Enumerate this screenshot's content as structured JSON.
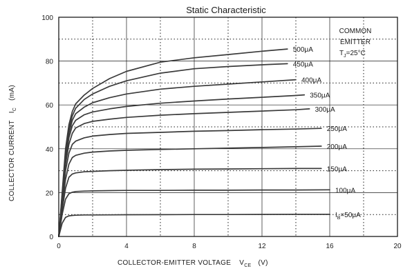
{
  "chart_data": {
    "type": "line",
    "title": "Static Characteristic",
    "xlabel": "COLLECTOR-EMITTER VOLTAGE",
    "xlabel_symbol": "V",
    "xlabel_symbol_sub": "CE",
    "xlabel_unit": "(V)",
    "ylabel": "COLLECTOR CURRENT",
    "ylabel_symbol": "I",
    "ylabel_symbol_sub": "C",
    "ylabel_unit": "(mA)",
    "xlim": [
      0,
      20
    ],
    "ylim": [
      0,
      100
    ],
    "x_ticks": [
      "0",
      "4",
      "8",
      "12",
      "16",
      "20"
    ],
    "y_ticks": [
      "0",
      "20",
      "40",
      "60",
      "80",
      "100"
    ],
    "grid": true,
    "annotation": {
      "line1": "COMMON",
      "line2": "EMITTER",
      "line3_main": "T",
      "line3_sub": "J",
      "line3_rest": "=25°C"
    },
    "series": [
      {
        "name": "I_B=50μA",
        "label_main": "I",
        "label_sub": "B",
        "label_rest": "=50μA",
        "x": [
          0,
          0.2,
          0.4,
          0.6,
          0.8,
          1.0,
          1.5,
          2,
          3,
          4,
          6,
          8,
          10,
          12,
          14,
          16
        ],
        "y": [
          0,
          6,
          8.7,
          9.4,
          9.6,
          9.7,
          9.8,
          9.8,
          9.85,
          9.9,
          9.95,
          10,
          10,
          10.05,
          10.1,
          10.1
        ]
      },
      {
        "name": "100μA",
        "label_main": "100μA",
        "x": [
          0,
          0.2,
          0.4,
          0.6,
          0.8,
          1.0,
          1.5,
          2,
          3,
          4,
          6,
          8,
          10,
          12,
          14,
          16
        ],
        "y": [
          0,
          10,
          17,
          19.5,
          20.2,
          20.5,
          20.7,
          20.8,
          20.9,
          21,
          21,
          21.1,
          21.1,
          21.2,
          21.2,
          21.3
        ]
      },
      {
        "name": "150μA",
        "label_main": "150μA",
        "x": [
          0,
          0.2,
          0.4,
          0.6,
          0.8,
          1.0,
          1.5,
          2,
          3,
          4,
          6,
          8,
          10,
          12,
          14,
          15.5
        ],
        "y": [
          0,
          12,
          22,
          27,
          28.5,
          29,
          29.5,
          29.7,
          30,
          30.2,
          30.5,
          30.7,
          30.8,
          30.9,
          31,
          31
        ]
      },
      {
        "name": "200μA",
        "label_main": "200μA",
        "x": [
          0,
          0.2,
          0.4,
          0.6,
          0.8,
          1.0,
          1.5,
          2,
          3,
          4,
          6,
          8,
          10,
          12,
          14,
          15.5
        ],
        "y": [
          0,
          14,
          26,
          33,
          36,
          37,
          38,
          38.5,
          39,
          39.3,
          39.7,
          40,
          40.3,
          40.6,
          40.9,
          41.2
        ]
      },
      {
        "name": "250μA",
        "label_main": "250μA",
        "x": [
          0,
          0.2,
          0.4,
          0.6,
          0.8,
          1.0,
          1.5,
          2,
          3,
          4,
          6,
          8,
          10,
          12,
          14,
          15.5
        ],
        "y": [
          0,
          15,
          30,
          38,
          42,
          43.5,
          45,
          45.8,
          46.5,
          47,
          47.5,
          48,
          48.3,
          48.7,
          49,
          49.3
        ]
      },
      {
        "name": "300μA",
        "label_main": "300μA",
        "x": [
          0,
          0.2,
          0.4,
          0.6,
          0.8,
          1.0,
          1.5,
          2,
          3,
          4,
          6,
          8,
          10,
          12,
          14,
          14.8
        ],
        "y": [
          0,
          16,
          33,
          42,
          47,
          49.5,
          51.5,
          52.5,
          53.5,
          54.3,
          55.3,
          56,
          56.6,
          57.2,
          57.8,
          58.2
        ]
      },
      {
        "name": "350μA",
        "label_main": "350μA",
        "x": [
          0,
          0.2,
          0.4,
          0.6,
          0.8,
          1.0,
          1.5,
          2,
          3,
          4,
          6,
          8,
          10,
          12,
          14,
          14.5
        ],
        "y": [
          0,
          17,
          35,
          45,
          50.5,
          53,
          55.5,
          56.8,
          58.2,
          59.3,
          60.8,
          61.8,
          62.7,
          63.5,
          64.3,
          64.6
        ]
      },
      {
        "name": "400μA",
        "label_main": "400μA",
        "x": [
          0,
          0.2,
          0.4,
          0.6,
          0.8,
          1.0,
          1.5,
          2,
          3,
          4,
          6,
          8,
          10,
          12,
          14
        ],
        "y": [
          0,
          18,
          37,
          47,
          53,
          56,
          59,
          61,
          63.3,
          65,
          67.2,
          68.5,
          69.5,
          70.5,
          71.5
        ]
      },
      {
        "name": "450μA",
        "label_main": "450μA",
        "x": [
          0,
          0.2,
          0.4,
          0.6,
          0.8,
          1.0,
          1.5,
          2,
          3,
          4,
          6,
          8,
          10,
          12,
          13.5
        ],
        "y": [
          0,
          19,
          38,
          49,
          55,
          58.5,
          62.5,
          65,
          68.5,
          71,
          74.5,
          76.5,
          77.5,
          78.3,
          78.8
        ]
      },
      {
        "name": "500μA",
        "label_main": "500μA",
        "x": [
          0,
          0.2,
          0.4,
          0.6,
          0.8,
          1.0,
          1.5,
          2,
          3,
          4,
          6,
          8,
          10,
          12,
          13.5
        ],
        "y": [
          0,
          20,
          40,
          51,
          57,
          60.5,
          64.5,
          67.5,
          72,
          75.3,
          79.5,
          81.5,
          83,
          84.5,
          85.5
        ]
      }
    ]
  }
}
